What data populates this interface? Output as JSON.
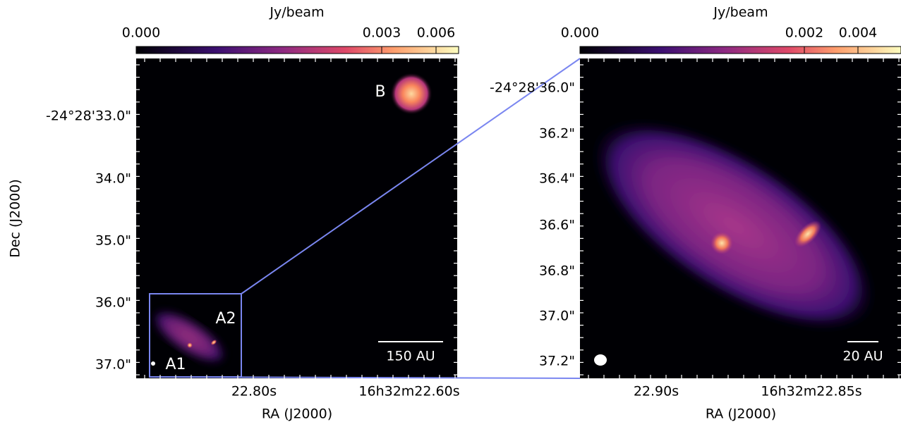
{
  "left_panel": {
    "colorbar": {
      "label": "Jy/beam",
      "ticks": [
        "0.000",
        "0.003",
        "0.006"
      ]
    },
    "y_ticks": [
      "-24°28'33.0\"",
      "34.0\"",
      "35.0\"",
      "36.0\"",
      "37.0\""
    ],
    "x_ticks": [
      "22.80s",
      "16h32m22.60s"
    ],
    "x_label": "RA (J2000)",
    "y_label": "Dec (J2000)",
    "annotations": [
      "B",
      "A2",
      "A1"
    ],
    "scale_bar": "150 AU"
  },
  "right_panel": {
    "colorbar": {
      "label": "Jy/beam",
      "ticks": [
        "0.000",
        "0.002",
        "0.004"
      ]
    },
    "y_ticks": [
      "-24°28'36.0\"",
      "36.2\"",
      "36.4\"",
      "36.6\"",
      "36.8\"",
      "37.0\"",
      "37.2\""
    ],
    "x_ticks": [
      "22.90s",
      "16h32m22.85s"
    ],
    "x_label": "RA (J2000)",
    "scale_bar": "20 AU"
  }
}
